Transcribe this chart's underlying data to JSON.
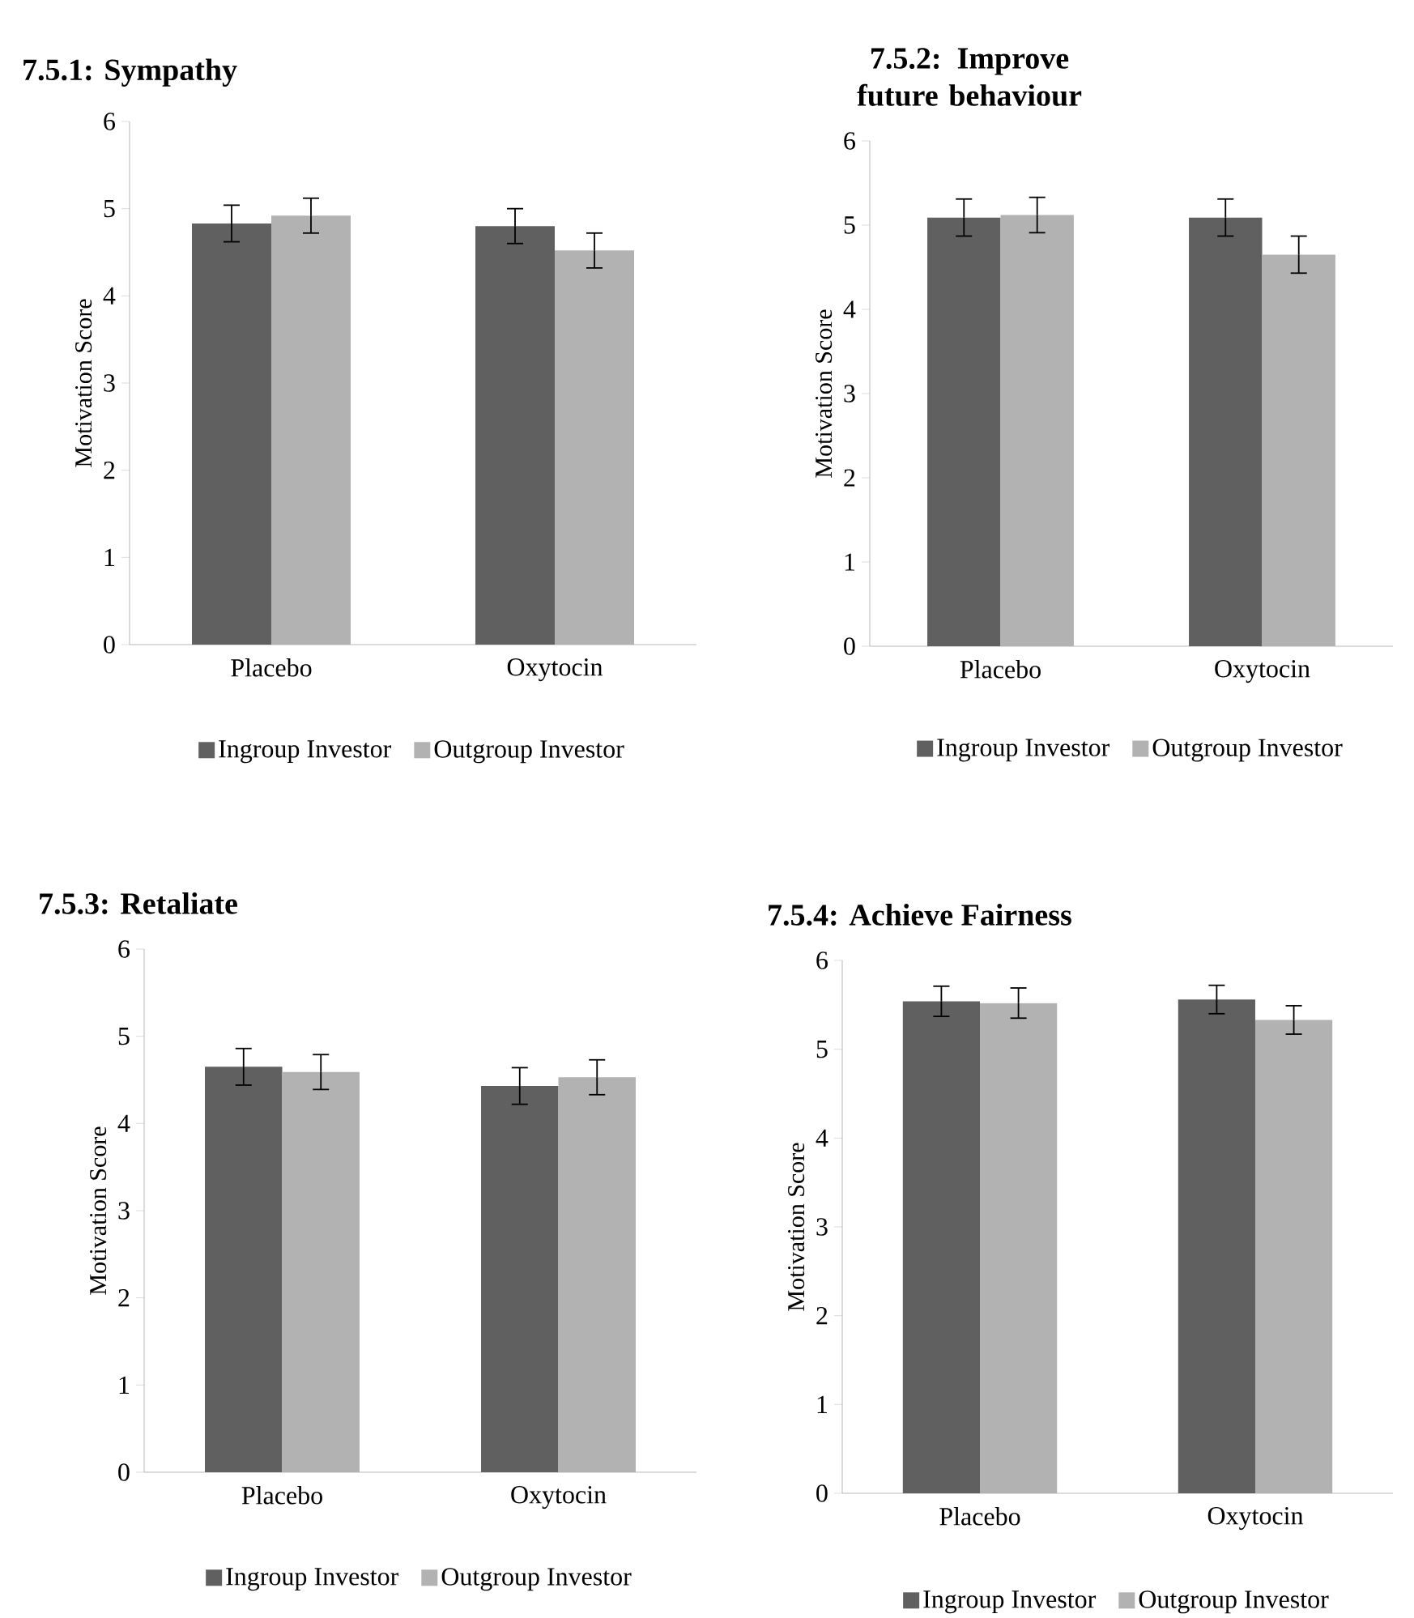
{
  "chart_data": [
    {
      "type": "bar",
      "title": "7.5.1: Sympathy",
      "ylabel": "Motivation Score",
      "categories": [
        "Placebo",
        "Oxytocin"
      ],
      "ylim": [
        0,
        6
      ],
      "yticks": [
        0,
        1,
        2,
        3,
        4,
        5,
        6
      ],
      "legend": "bottom",
      "series": [
        {
          "name": "Ingroup Investor",
          "color": "#606060",
          "values": [
            4.83,
            4.8
          ],
          "errors": [
            0.21,
            0.2
          ]
        },
        {
          "name": "Outgroup Investor",
          "color": "#b2b2b2",
          "values": [
            4.92,
            4.52
          ],
          "errors": [
            0.2,
            0.2
          ]
        }
      ]
    },
    {
      "type": "bar",
      "title": "7.5.2: Improve future behaviour",
      "ylabel": "Motivation Score",
      "categories": [
        "Placebo",
        "Oxytocin"
      ],
      "ylim": [
        0,
        6
      ],
      "yticks": [
        0,
        1,
        2,
        3,
        4,
        5,
        6
      ],
      "legend": "bottom",
      "series": [
        {
          "name": "Ingroup Investor",
          "color": "#606060",
          "values": [
            5.09,
            5.09
          ],
          "errors": [
            0.22,
            0.22
          ]
        },
        {
          "name": "Outgroup Investor",
          "color": "#b2b2b2",
          "values": [
            5.12,
            4.65
          ],
          "errors": [
            0.21,
            0.22
          ]
        }
      ]
    },
    {
      "type": "bar",
      "title": "7.5.3: Retaliate",
      "ylabel": "Motivation Score",
      "categories": [
        "Placebo",
        "Oxytocin"
      ],
      "ylim": [
        0,
        6
      ],
      "yticks": [
        0,
        1,
        2,
        3,
        4,
        5,
        6
      ],
      "legend": "bottom",
      "series": [
        {
          "name": "Ingroup Investor",
          "color": "#606060",
          "values": [
            4.65,
            4.43
          ],
          "errors": [
            0.21,
            0.21
          ]
        },
        {
          "name": "Outgroup Investor",
          "color": "#b2b2b2",
          "values": [
            4.59,
            4.53
          ],
          "errors": [
            0.2,
            0.2
          ]
        }
      ]
    },
    {
      "type": "bar",
      "title": "7.5.4: Achieve Fairness",
      "ylabel": "Motivation Score",
      "categories": [
        "Placebo",
        "Oxytocin"
      ],
      "ylim": [
        0,
        6
      ],
      "yticks": [
        0,
        1,
        2,
        3,
        4,
        5,
        6
      ],
      "legend": "bottom",
      "series": [
        {
          "name": "Ingroup Investor",
          "color": "#606060",
          "values": [
            5.54,
            5.56
          ],
          "errors": [
            0.17,
            0.16
          ]
        },
        {
          "name": "Outgroup Investor",
          "color": "#b2b2b2",
          "values": [
            5.52,
            5.33
          ],
          "errors": [
            0.17,
            0.16
          ]
        }
      ]
    }
  ]
}
